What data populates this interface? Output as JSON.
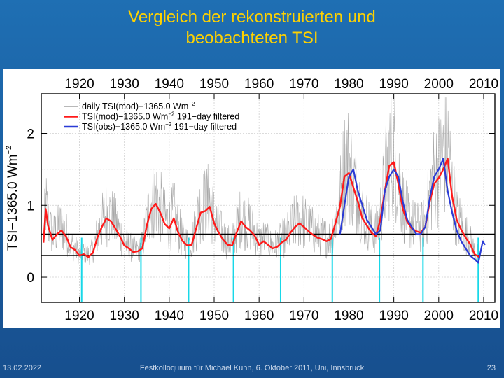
{
  "slide": {
    "title_line1": "Vergleich der rekonstruierten und",
    "title_line2": "beobachteten TSI",
    "date": "13.02.2022",
    "footer": "Festkolloquium für Michael Kuhn, 6. Oktober 2011, Uni, Innsbruck",
    "page_number": "23"
  },
  "colors": {
    "background": "#1a5fa2",
    "title": "#ffd200",
    "daily": "#a0a0a0",
    "mod": "#ff1a1a",
    "obs": "#2a3bd6",
    "cyan_markers": "#18d8e8"
  },
  "chart_data": {
    "type": "line",
    "ylabel": "TSI−1365.0 Wm",
    "ylabel_sup": "−2",
    "xlim": [
      1911.5,
      2012.5
    ],
    "ylim": [
      -0.35,
      2.55
    ],
    "x_ticks": [
      1920,
      1930,
      1940,
      1950,
      1960,
      1970,
      1980,
      1990,
      2000,
      2010
    ],
    "x_tick_labels": [
      "1920",
      "1930",
      "1940",
      "1950",
      "1960",
      "1970",
      "1980",
      "1990",
      "2000",
      "2010"
    ],
    "y_ticks": [
      0,
      1,
      2
    ],
    "y_tick_labels": [
      "0",
      "1",
      "2"
    ],
    "grid": true,
    "legend": {
      "position": "top-left",
      "entries": [
        {
          "label": "daily TSI(mod)−1365.0 Wm",
          "sup": "−2",
          "series": "daily"
        },
        {
          "label": "TSI(mod)−1365.0 Wm",
          "sup": "−2",
          "suffix": " 191−day filtered",
          "series": "mod"
        },
        {
          "label": "TSI(obs)−1365.0 Wm",
          "sup": "−2",
          "suffix": " 191−day filtered",
          "series": "obs"
        }
      ]
    },
    "horizontal_lines": [
      0.3,
      0.6
    ],
    "cyan_markers_x": [
      1920.5,
      1933.7,
      1944.3,
      1954.3,
      1964.8,
      1976.3,
      1986.8,
      1996.5,
      2008.8
    ],
    "cyan_marker_ymax": 0.55,
    "series": [
      {
        "name": "TSI(mod) 191-day filtered",
        "key": "mod",
        "x": [
          1912,
          1912.5,
          1913,
          1914,
          1915,
          1916,
          1917,
          1918,
          1919,
          1920,
          1921,
          1922,
          1923,
          1924,
          1925,
          1926,
          1927,
          1928,
          1929,
          1930,
          1931,
          1932,
          1933,
          1934,
          1935,
          1936,
          1937,
          1938,
          1939,
          1940,
          1941,
          1942,
          1943,
          1944,
          1945,
          1946,
          1947,
          1948,
          1949,
          1950,
          1951,
          1952,
          1953,
          1954,
          1955,
          1956,
          1957,
          1958,
          1959,
          1960,
          1961,
          1962,
          1963,
          1964,
          1965,
          1966,
          1967,
          1968,
          1969,
          1970,
          1971,
          1972,
          1973,
          1974,
          1975,
          1976,
          1977,
          1978,
          1979,
          1980,
          1981,
          1982,
          1983,
          1984,
          1985,
          1986,
          1987,
          1988,
          1989,
          1990,
          1991,
          1992,
          1993,
          1994,
          1995,
          1996,
          1997,
          1998,
          1999,
          2000,
          2001,
          2002,
          2003,
          2004,
          2005,
          2006,
          2007,
          2008,
          2009
        ],
        "y": [
          0.48,
          0.95,
          0.72,
          0.52,
          0.6,
          0.65,
          0.57,
          0.42,
          0.38,
          0.3,
          0.32,
          0.28,
          0.34,
          0.55,
          0.7,
          0.82,
          0.78,
          0.68,
          0.57,
          0.44,
          0.4,
          0.35,
          0.36,
          0.4,
          0.72,
          0.95,
          1.02,
          0.9,
          0.74,
          0.68,
          0.82,
          0.62,
          0.5,
          0.44,
          0.45,
          0.68,
          0.9,
          0.92,
          0.98,
          0.75,
          0.62,
          0.52,
          0.45,
          0.44,
          0.62,
          0.78,
          0.7,
          0.65,
          0.58,
          0.45,
          0.5,
          0.45,
          0.4,
          0.42,
          0.48,
          0.52,
          0.62,
          0.7,
          0.75,
          0.7,
          0.64,
          0.59,
          0.55,
          0.53,
          0.5,
          0.53,
          0.75,
          0.98,
          1.4,
          1.45,
          1.25,
          1.05,
          0.82,
          0.72,
          0.62,
          0.57,
          0.8,
          1.2,
          1.55,
          1.6,
          1.3,
          0.95,
          0.77,
          0.68,
          0.64,
          0.62,
          0.7,
          1.05,
          1.3,
          1.38,
          1.5,
          1.65,
          1.12,
          0.8,
          0.66,
          0.55,
          0.46,
          0.32,
          0.28
        ]
      },
      {
        "name": "TSI(obs) 191-day filtered",
        "key": "obs",
        "x": [
          1978.0,
          1979,
          1980,
          1981,
          1982,
          1983,
          1984,
          1985,
          1986,
          1987,
          1988,
          1989,
          1990,
          1991,
          1992,
          1993,
          1994,
          1995,
          1996,
          1997,
          1998,
          1999,
          2000,
          2001,
          2002,
          2003,
          2004,
          2005,
          2006,
          2007,
          2008,
          2008.8,
          2009.3,
          2009.8,
          2010.3
        ],
        "y": [
          0.6,
          1.0,
          1.4,
          1.5,
          1.2,
          1.0,
          0.8,
          0.7,
          0.6,
          0.65,
          1.2,
          1.4,
          1.5,
          1.4,
          1.05,
          0.8,
          0.7,
          0.6,
          0.6,
          0.7,
          1.1,
          1.4,
          1.5,
          1.65,
          1.2,
          0.9,
          0.65,
          0.5,
          0.4,
          0.3,
          0.25,
          0.2,
          0.35,
          0.5,
          0.45
        ]
      },
      {
        "name": "daily TSI(mod)",
        "key": "daily",
        "note": "dense daily noise drawn around the filtered mod series",
        "amplitude": 0.9
      }
    ]
  }
}
